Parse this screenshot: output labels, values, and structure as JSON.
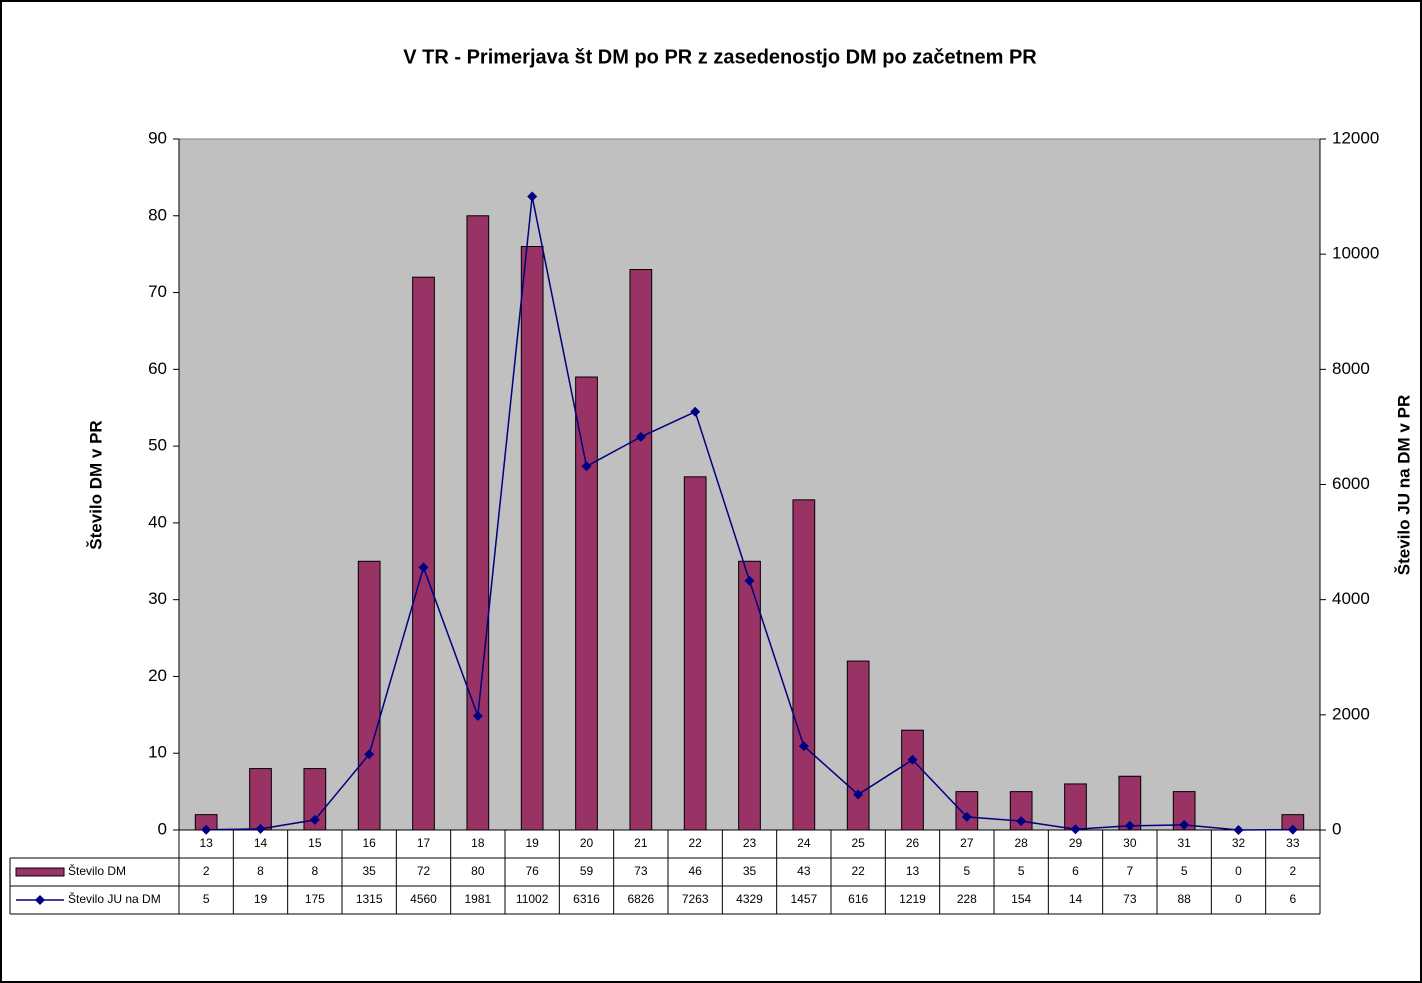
{
  "chart_data": {
    "type": "bar",
    "title": "V TR - Primerjava št DM po PR z zasedenostjo DM po začetnem PR",
    "ylabel": "Število DM v PR",
    "y2label": "Število JU na DM v PR",
    "categories": [
      "13",
      "14",
      "15",
      "16",
      "17",
      "18",
      "19",
      "20",
      "21",
      "22",
      "23",
      "24",
      "25",
      "26",
      "27",
      "28",
      "29",
      "30",
      "31",
      "32",
      "33"
    ],
    "series": [
      {
        "name": "Število DM",
        "type": "bar",
        "color": "#993366",
        "axis": "y",
        "values": [
          2,
          8,
          8,
          35,
          72,
          80,
          76,
          59,
          73,
          46,
          35,
          43,
          22,
          13,
          5,
          5,
          6,
          7,
          5,
          0,
          2
        ]
      },
      {
        "name": "Število JU na DM",
        "type": "line",
        "color": "#000080",
        "axis": "y2",
        "values": [
          5,
          19,
          175,
          1315,
          4560,
          1981,
          11002,
          6316,
          6826,
          7263,
          4329,
          1457,
          616,
          1219,
          228,
          154,
          14,
          73,
          88,
          0,
          6
        ]
      }
    ],
    "ylim": [
      0,
      90
    ],
    "yticks": [
      0,
      10,
      20,
      30,
      40,
      50,
      60,
      70,
      80,
      90
    ],
    "y2lim": [
      0,
      12000
    ],
    "y2ticks": [
      0,
      2000,
      4000,
      6000,
      8000,
      10000,
      12000
    ],
    "plot_background": "#c0c0c0"
  }
}
